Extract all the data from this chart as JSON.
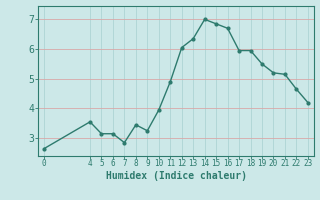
{
  "x": [
    0,
    4,
    5,
    6,
    7,
    8,
    9,
    10,
    11,
    12,
    13,
    14,
    15,
    16,
    17,
    18,
    19,
    20,
    21,
    22,
    23
  ],
  "y": [
    2.65,
    3.55,
    3.15,
    3.15,
    2.85,
    3.45,
    3.25,
    3.95,
    4.9,
    6.05,
    6.35,
    7.0,
    6.85,
    6.7,
    5.95,
    5.95,
    5.5,
    5.2,
    5.15,
    4.65,
    4.2
  ],
  "line_color": "#2e7b6e",
  "marker_color": "#2e7b6e",
  "bg_color": "#cce8e8",
  "grid_h_color": "#d8a8a8",
  "grid_v_color": "#aed4d4",
  "xlabel": "Humidex (Indice chaleur)",
  "xticks": [
    0,
    4,
    5,
    6,
    7,
    8,
    9,
    10,
    11,
    12,
    13,
    14,
    15,
    16,
    17,
    18,
    19,
    20,
    21,
    22,
    23
  ],
  "yticks": [
    3,
    4,
    5,
    6,
    7
  ],
  "xlim": [
    -0.5,
    23.5
  ],
  "ylim": [
    2.4,
    7.45
  ]
}
